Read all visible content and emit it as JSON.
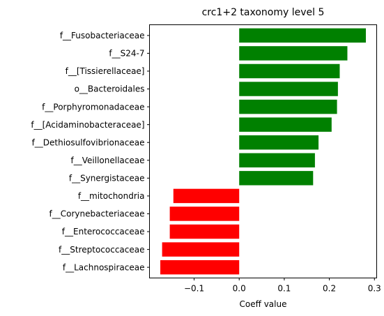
{
  "chart_data": {
    "type": "bar",
    "orientation": "horizontal",
    "title": "crc1+2 taxonomy level 5",
    "xlabel": "Coeff value",
    "ylabel": "",
    "categories": [
      "f__Fusobacteriaceae",
      "f__S24-7",
      "f__[Tissierellaceae]",
      "o__Bacteroidales",
      "f__Porphyromonadaceae",
      "f__[Acidaminobacteraceae]",
      "f__Dethiosulfovibrionaceae",
      "f__Veillonellaceae",
      "f__Synergistaceae",
      "f__mitochondria",
      "f__Corynebacteriaceae",
      "f__Enterococcaceae",
      "f__Streptococcaceae",
      "f__Lachnospiraceae"
    ],
    "values": [
      0.281,
      0.24,
      0.223,
      0.219,
      0.217,
      0.205,
      0.176,
      0.168,
      0.164,
      -0.146,
      -0.154,
      -0.154,
      -0.171,
      -0.175
    ],
    "xlim": [
      -0.199,
      0.305
    ],
    "xticks": [
      -0.1,
      0.0,
      0.1,
      0.2,
      0.3
    ],
    "xtick_labels": [
      "−0.1",
      "0.0",
      "0.1",
      "0.2",
      "0.3"
    ],
    "grid": false,
    "legend": "none",
    "colors": {
      "positive": "#008000",
      "negative": "#ff0000",
      "axis": "#000000"
    }
  }
}
